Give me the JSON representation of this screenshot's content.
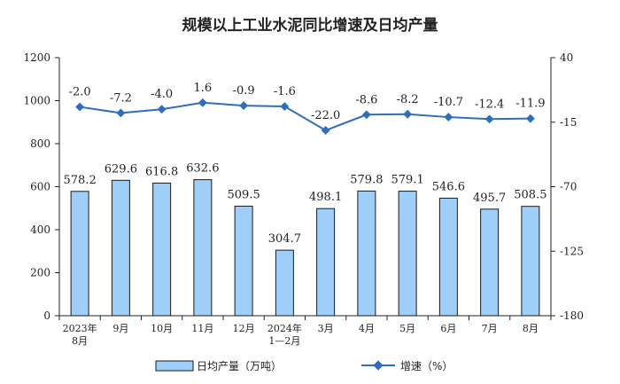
{
  "chart_data": {
    "type": "bar",
    "title": "规模以上工业水泥同比增速及日均产量",
    "categories": [
      "2023年\n8月",
      "9月",
      "10月",
      "11月",
      "12月",
      "2024年\n1—2月",
      "3月",
      "4月",
      "5月",
      "6月",
      "7月",
      "8月"
    ],
    "series": [
      {
        "name": "日均产量（万吨）",
        "type": "bar",
        "axis": "left",
        "values": [
          578.2,
          629.6,
          616.8,
          632.6,
          509.5,
          304.7,
          498.1,
          579.8,
          579.1,
          546.6,
          495.7,
          508.5
        ],
        "labels": [
          "578.2",
          "629.6",
          "616.8",
          "632.6",
          "509.5",
          "304.7",
          "498.1",
          "579.8",
          "579.1",
          "546.6",
          "495.7",
          "508.5"
        ]
      },
      {
        "name": "增速（%）",
        "type": "line",
        "axis": "right",
        "values": [
          -2.0,
          -7.2,
          -4.0,
          1.6,
          -0.9,
          -1.6,
          -22.0,
          -8.6,
          -8.2,
          -10.7,
          -12.4,
          -11.9
        ],
        "labels": [
          "-2.0",
          "-7.2",
          "-4.0",
          "1.6",
          "-0.9",
          "-1.6",
          "-22.0",
          "-8.6",
          "-8.2",
          "-10.7",
          "-12.4",
          "-11.9"
        ]
      }
    ],
    "y_left": {
      "min": 0,
      "max": 1200,
      "ticks": [
        "0",
        "200",
        "400",
        "600",
        "800",
        "1000",
        "1200"
      ]
    },
    "y_right": {
      "min": -180,
      "max": 40,
      "ticks": [
        "40",
        "-15",
        "-70",
        "-125",
        "-180"
      ],
      "tick_values": [
        40,
        -15,
        -70,
        -125,
        -180
      ]
    },
    "legend_position": "bottom",
    "grid": false,
    "colors": {
      "bar_fill": "#9fcff8",
      "bar_stroke": "#1a1a1a",
      "line": "#2f6fba"
    }
  }
}
